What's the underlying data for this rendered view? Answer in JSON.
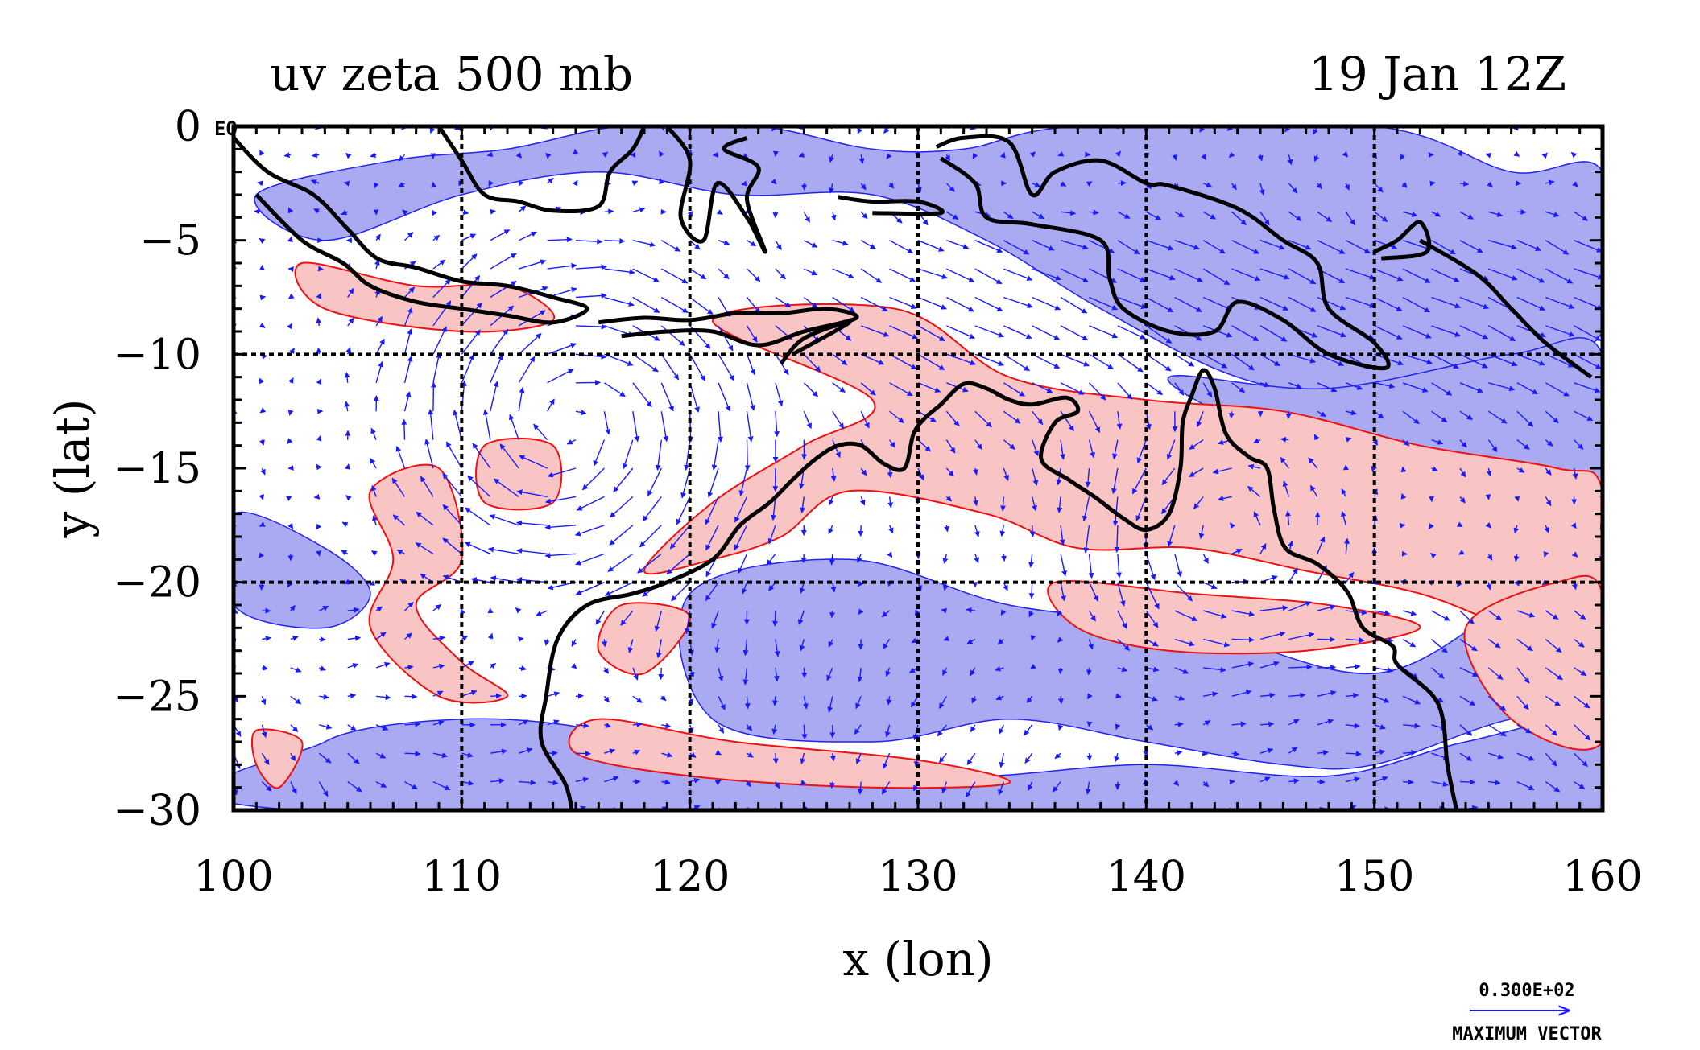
{
  "chart_data": {
    "type": "vector-contour-map",
    "title_left": "uv zeta 500 mb",
    "title_right": "19 Jan 12Z",
    "xlabel": "x (lon)",
    "ylabel": "y (lat)",
    "xlim": [
      100,
      160
    ],
    "ylim": [
      -30,
      0
    ],
    "x_ticks": [
      100,
      110,
      120,
      130,
      140,
      150,
      160
    ],
    "x_tick_labels": [
      "100",
      "110",
      "120",
      "130",
      "140",
      "150",
      "160"
    ],
    "y_ticks": [
      0,
      -5,
      -10,
      -15,
      -20,
      -25,
      -30
    ],
    "y_tick_labels": [
      "0",
      "−5",
      "−10",
      "−15",
      "−20",
      "−25",
      "−30"
    ],
    "y_top_tag": "EQ",
    "grid_lines_x": [
      110,
      120,
      130,
      140,
      150
    ],
    "grid_lines_y": [
      -10,
      -20
    ],
    "grid": true,
    "vector_legend": {
      "value_label": "0.300E+02",
      "caption": "MAXIMUM VECTOR"
    },
    "colors": {
      "vector": "#1a1aff",
      "positive_fill": "#f8c4c4",
      "positive_line": "#ee1111",
      "negative_fill": "#aaaaf2",
      "negative_line": "#2222ee",
      "coast": "#000000"
    },
    "negative_regions": [
      [
        [
          101,
          -3
        ],
        [
          107,
          -1.5
        ],
        [
          112,
          -1
        ],
        [
          117,
          0
        ],
        [
          123,
          0
        ],
        [
          128,
          -1
        ],
        [
          132,
          -1
        ],
        [
          137,
          0
        ],
        [
          150,
          0
        ],
        [
          156,
          -2
        ],
        [
          160,
          -2
        ],
        [
          160,
          -9
        ],
        [
          155,
          -11
        ],
        [
          150,
          -12
        ],
        [
          144,
          -11
        ],
        [
          138,
          -8
        ],
        [
          133,
          -5
        ],
        [
          128,
          -3
        ],
        [
          122,
          -3
        ],
        [
          116,
          -2
        ],
        [
          110,
          -3
        ],
        [
          104,
          -5
        ]
      ],
      [
        [
          141,
          -11
        ],
        [
          148,
          -11.5
        ],
        [
          156,
          -10
        ],
        [
          160,
          -10
        ],
        [
          160,
          -19
        ],
        [
          156,
          -18
        ],
        [
          153,
          -16
        ],
        [
          148,
          -15
        ],
        [
          145,
          -13.5
        ]
      ],
      [
        [
          100,
          -17
        ],
        [
          104,
          -18.5
        ],
        [
          106,
          -20.5
        ],
        [
          104,
          -22
        ],
        [
          100,
          -21
        ]
      ],
      [
        [
          120,
          -20.5
        ],
        [
          127,
          -19
        ],
        [
          134,
          -21
        ],
        [
          142,
          -22
        ],
        [
          150,
          -24
        ],
        [
          156,
          -21
        ],
        [
          160,
          -20
        ],
        [
          160,
          -26
        ],
        [
          156,
          -26
        ],
        [
          150,
          -28
        ],
        [
          146,
          -28
        ],
        [
          140,
          -27
        ],
        [
          134,
          -26
        ],
        [
          128,
          -27
        ],
        [
          121,
          -26
        ]
      ],
      [
        [
          104,
          -27
        ],
        [
          110,
          -26
        ],
        [
          116,
          -26.5
        ],
        [
          120,
          -28
        ],
        [
          126,
          -27.5
        ],
        [
          132,
          -28.5
        ],
        [
          140,
          -28
        ],
        [
          148,
          -28.5
        ],
        [
          154,
          -27
        ],
        [
          160,
          -26
        ],
        [
          160,
          -30
        ],
        [
          103,
          -30
        ]
      ]
    ],
    "positive_regions": [
      [
        [
          103,
          -6
        ],
        [
          108,
          -7
        ],
        [
          112,
          -7
        ],
        [
          114,
          -8.5
        ],
        [
          110,
          -9
        ],
        [
          104,
          -8
        ]
      ],
      [
        [
          121,
          -8.5
        ],
        [
          129,
          -8
        ],
        [
          134,
          -11
        ],
        [
          140,
          -12
        ],
        [
          146,
          -12.5
        ],
        [
          152,
          -14
        ],
        [
          158,
          -15
        ],
        [
          160,
          -16
        ],
        [
          160,
          -23
        ],
        [
          156,
          -22
        ],
        [
          152,
          -20.5
        ],
        [
          147,
          -19.5
        ],
        [
          142,
          -18.5
        ],
        [
          137,
          -18.5
        ],
        [
          133,
          -17
        ],
        [
          127,
          -16
        ],
        [
          124,
          -18
        ],
        [
          121,
          -19
        ],
        [
          118,
          -19.5
        ],
        [
          121,
          -16.5
        ],
        [
          125,
          -14
        ],
        [
          128,
          -12
        ]
      ],
      [
        [
          106,
          -16
        ],
        [
          109,
          -15
        ],
        [
          110,
          -19
        ],
        [
          108,
          -21
        ],
        [
          110,
          -23.5
        ],
        [
          112,
          -25
        ],
        [
          109,
          -25
        ],
        [
          106,
          -22
        ],
        [
          107,
          -19
        ]
      ],
      [
        [
          111,
          -14
        ],
        [
          114,
          -14
        ],
        [
          114,
          -16.5
        ],
        [
          111,
          -16.5
        ]
      ],
      [
        [
          136,
          -20
        ],
        [
          142,
          -20.5
        ],
        [
          148,
          -21
        ],
        [
          152,
          -22
        ],
        [
          147,
          -23
        ],
        [
          141,
          -23
        ],
        [
          137,
          -22
        ]
      ],
      [
        [
          154,
          -22
        ],
        [
          158,
          -20
        ],
        [
          160,
          -20.5
        ],
        [
          160,
          -27
        ],
        [
          156,
          -26
        ]
      ],
      [
        [
          101,
          -26.5
        ],
        [
          103,
          -27
        ],
        [
          102,
          -29
        ],
        [
          101,
          -28
        ]
      ],
      [
        [
          116,
          -26
        ],
        [
          122,
          -27
        ],
        [
          130,
          -27.8
        ],
        [
          134,
          -28.8
        ],
        [
          128,
          -29
        ],
        [
          120,
          -28.5
        ],
        [
          115,
          -27.5
        ]
      ],
      [
        [
          117,
          -21
        ],
        [
          120,
          -21.5
        ],
        [
          118,
          -24
        ],
        [
          116,
          -23
        ]
      ]
    ],
    "coastlines": [
      [
        [
          100,
          -0.5
        ],
        [
          101.5,
          -2
        ],
        [
          103.5,
          -3
        ],
        [
          105,
          -4.5
        ],
        [
          106.3,
          -5.8
        ],
        [
          108,
          -6.2
        ],
        [
          110,
          -6.8
        ],
        [
          112,
          -7
        ],
        [
          114,
          -7.5
        ],
        [
          115.5,
          -8
        ],
        [
          114,
          -8.6
        ],
        [
          112,
          -8.3
        ],
        [
          110,
          -8
        ],
        [
          108,
          -7.7
        ],
        [
          106,
          -7
        ],
        [
          104.8,
          -6
        ],
        [
          103,
          -5
        ],
        [
          101,
          -3
        ]
      ],
      [
        [
          109,
          0
        ],
        [
          110,
          -1.5
        ],
        [
          111,
          -3
        ],
        [
          112.5,
          -3.3
        ],
        [
          114,
          -3.7
        ],
        [
          116,
          -3.5
        ],
        [
          116.5,
          -2
        ],
        [
          117.5,
          -1
        ],
        [
          118,
          0
        ]
      ],
      [
        [
          119,
          0
        ],
        [
          120,
          -1.5
        ],
        [
          119.6,
          -4
        ],
        [
          120.6,
          -5
        ],
        [
          121.2,
          -2.5
        ],
        [
          122.5,
          -4
        ],
        [
          123.3,
          -5.5
        ],
        [
          122.5,
          -3.2
        ],
        [
          123,
          -1.8
        ],
        [
          121.5,
          -1
        ],
        [
          122.5,
          -0.5
        ]
      ],
      [
        [
          116,
          -8.6
        ],
        [
          118,
          -8.4
        ],
        [
          120,
          -8.5
        ],
        [
          122,
          -8.2
        ],
        [
          124,
          -8.2
        ],
        [
          126,
          -8
        ],
        [
          127.3,
          -8.4
        ],
        [
          125,
          -9
        ],
        [
          123,
          -9.6
        ],
        [
          121,
          -9
        ],
        [
          119,
          -9
        ],
        [
          117,
          -9.2
        ]
      ],
      [
        [
          124,
          -10.4
        ],
        [
          125,
          -9.3
        ],
        [
          127,
          -8.6
        ],
        [
          124.5,
          -10
        ]
      ],
      [
        [
          126.5,
          -3.1
        ],
        [
          128,
          -3.3
        ],
        [
          130,
          -3.3
        ],
        [
          131,
          -3.8
        ],
        [
          128,
          -3.8
        ]
      ],
      [
        [
          130.8,
          -0.9
        ],
        [
          132,
          -0.5
        ],
        [
          134,
          -0.7
        ],
        [
          135,
          -3
        ],
        [
          136,
          -2
        ],
        [
          138,
          -1.5
        ],
        [
          140,
          -2.5
        ],
        [
          141,
          -2.6
        ],
        [
          144,
          -3.6
        ],
        [
          146,
          -5
        ],
        [
          147.5,
          -6
        ],
        [
          148,
          -8
        ],
        [
          150,
          -9.5
        ],
        [
          150.5,
          -10.6
        ],
        [
          148,
          -10
        ],
        [
          146,
          -8.5
        ],
        [
          144,
          -7.7
        ],
        [
          143,
          -9
        ],
        [
          141,
          -9
        ],
        [
          139,
          -8
        ],
        [
          138.4,
          -6.7
        ],
        [
          138,
          -5
        ],
        [
          135,
          -4.3
        ],
        [
          133,
          -4
        ],
        [
          132.5,
          -2.5
        ],
        [
          131,
          -1.4
        ]
      ],
      [
        [
          152,
          -5
        ],
        [
          154.5,
          -6.5
        ],
        [
          156,
          -8
        ],
        [
          157.5,
          -9.5
        ],
        [
          159.5,
          -11
        ]
      ],
      [
        [
          150,
          -5.5
        ],
        [
          151,
          -5
        ],
        [
          152,
          -4.2
        ],
        [
          152.3,
          -5.5
        ],
        [
          150.3,
          -5.8
        ]
      ],
      [
        [
          116,
          -35
        ],
        [
          115,
          -33.5
        ],
        [
          114.9,
          -31
        ],
        [
          114.6,
          -29
        ],
        [
          113.5,
          -27
        ],
        [
          113.7,
          -25
        ],
        [
          114.2,
          -22.5
        ],
        [
          115.5,
          -21
        ],
        [
          117.5,
          -20.5
        ],
        [
          119,
          -20
        ],
        [
          121,
          -19
        ],
        [
          122.2,
          -17.5
        ],
        [
          123.5,
          -16.5
        ],
        [
          124.5,
          -15.5
        ],
        [
          125.5,
          -14.6
        ],
        [
          126.5,
          -14
        ],
        [
          127.5,
          -14
        ],
        [
          128.5,
          -14.8
        ],
        [
          129.4,
          -15
        ],
        [
          129.8,
          -13.5
        ],
        [
          130.3,
          -12.8
        ],
        [
          131,
          -12.2
        ],
        [
          132,
          -11.3
        ],
        [
          133,
          -11.5
        ],
        [
          134,
          -12
        ],
        [
          135,
          -12.2
        ],
        [
          136.5,
          -11.9
        ],
        [
          137,
          -12.5
        ],
        [
          136,
          -13
        ],
        [
          135.4,
          -14.6
        ],
        [
          136.6,
          -15.5
        ],
        [
          137.8,
          -16.3
        ],
        [
          139,
          -17.2
        ],
        [
          140,
          -17.7
        ],
        [
          141,
          -17
        ],
        [
          141.5,
          -15
        ],
        [
          141.6,
          -13
        ],
        [
          142,
          -11.8
        ],
        [
          142.5,
          -10.7
        ],
        [
          143,
          -11.5
        ],
        [
          143.5,
          -13.5
        ],
        [
          144.5,
          -14.5
        ],
        [
          145.3,
          -15
        ],
        [
          145.6,
          -16.8
        ],
        [
          146.1,
          -18.5
        ],
        [
          147.5,
          -19.2
        ],
        [
          148.8,
          -20.4
        ],
        [
          149.5,
          -22
        ],
        [
          150.8,
          -22.8
        ],
        [
          151,
          -23.6
        ],
        [
          152.5,
          -24.9
        ],
        [
          153,
          -26
        ],
        [
          153.2,
          -28
        ],
        [
          153.6,
          -30
        ]
      ]
    ]
  }
}
